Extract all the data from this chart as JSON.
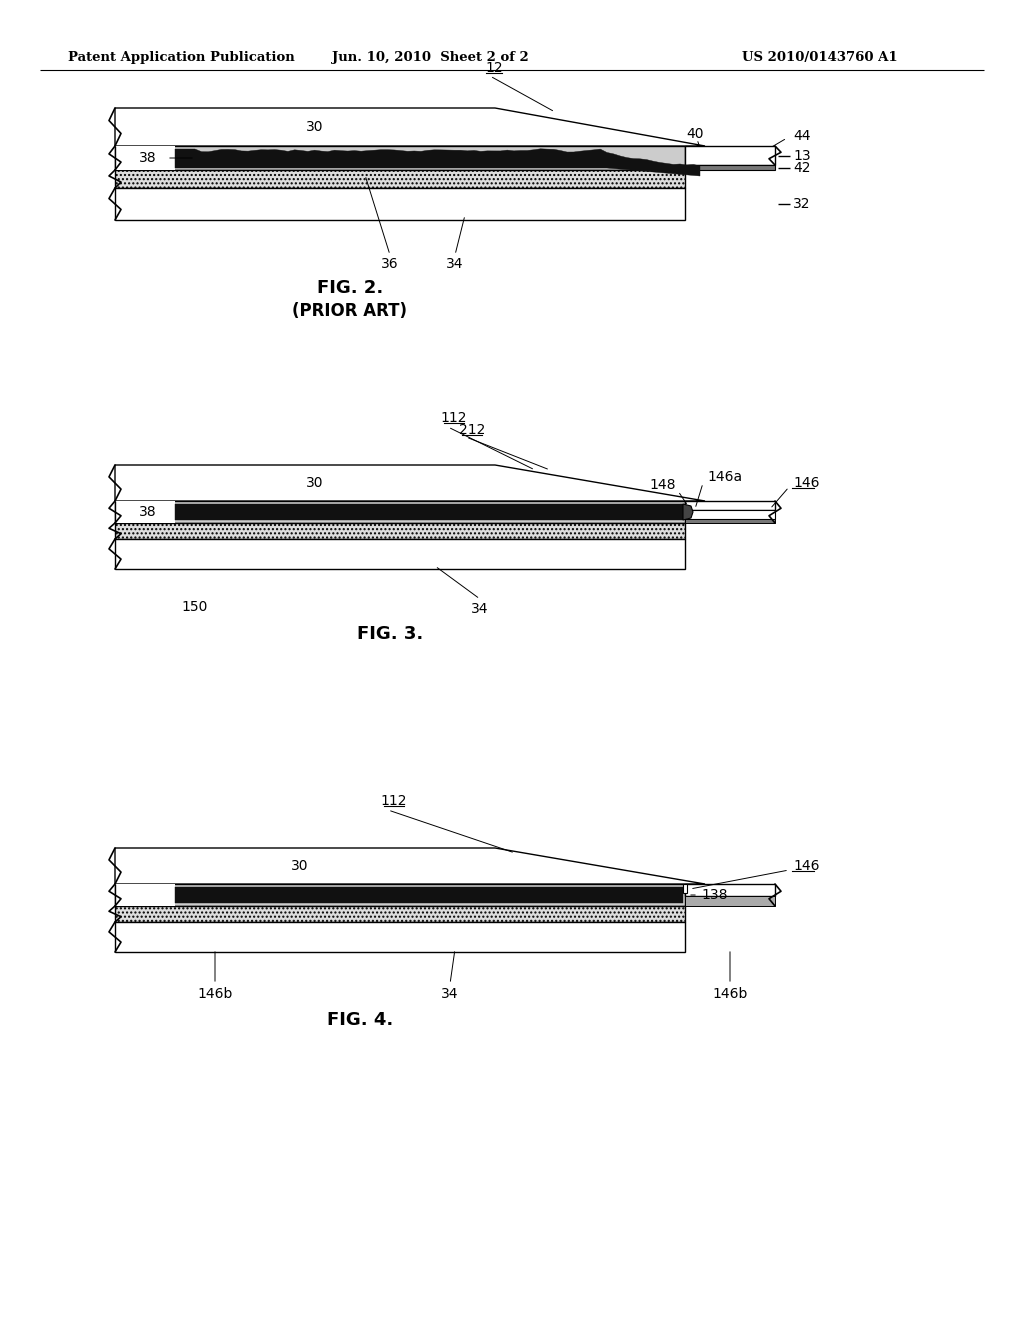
{
  "bg_color": "#ffffff",
  "header_text": "Patent Application Publication",
  "header_date": "Jun. 10, 2010  Sheet 2 of 2",
  "header_patent": "US 2010/0143760 A1",
  "fig2_title": "FIG. 2.",
  "fig2_subtitle": "(PRIOR ART)",
  "fig3_title": "FIG. 3.",
  "fig4_title": "FIG. 4."
}
